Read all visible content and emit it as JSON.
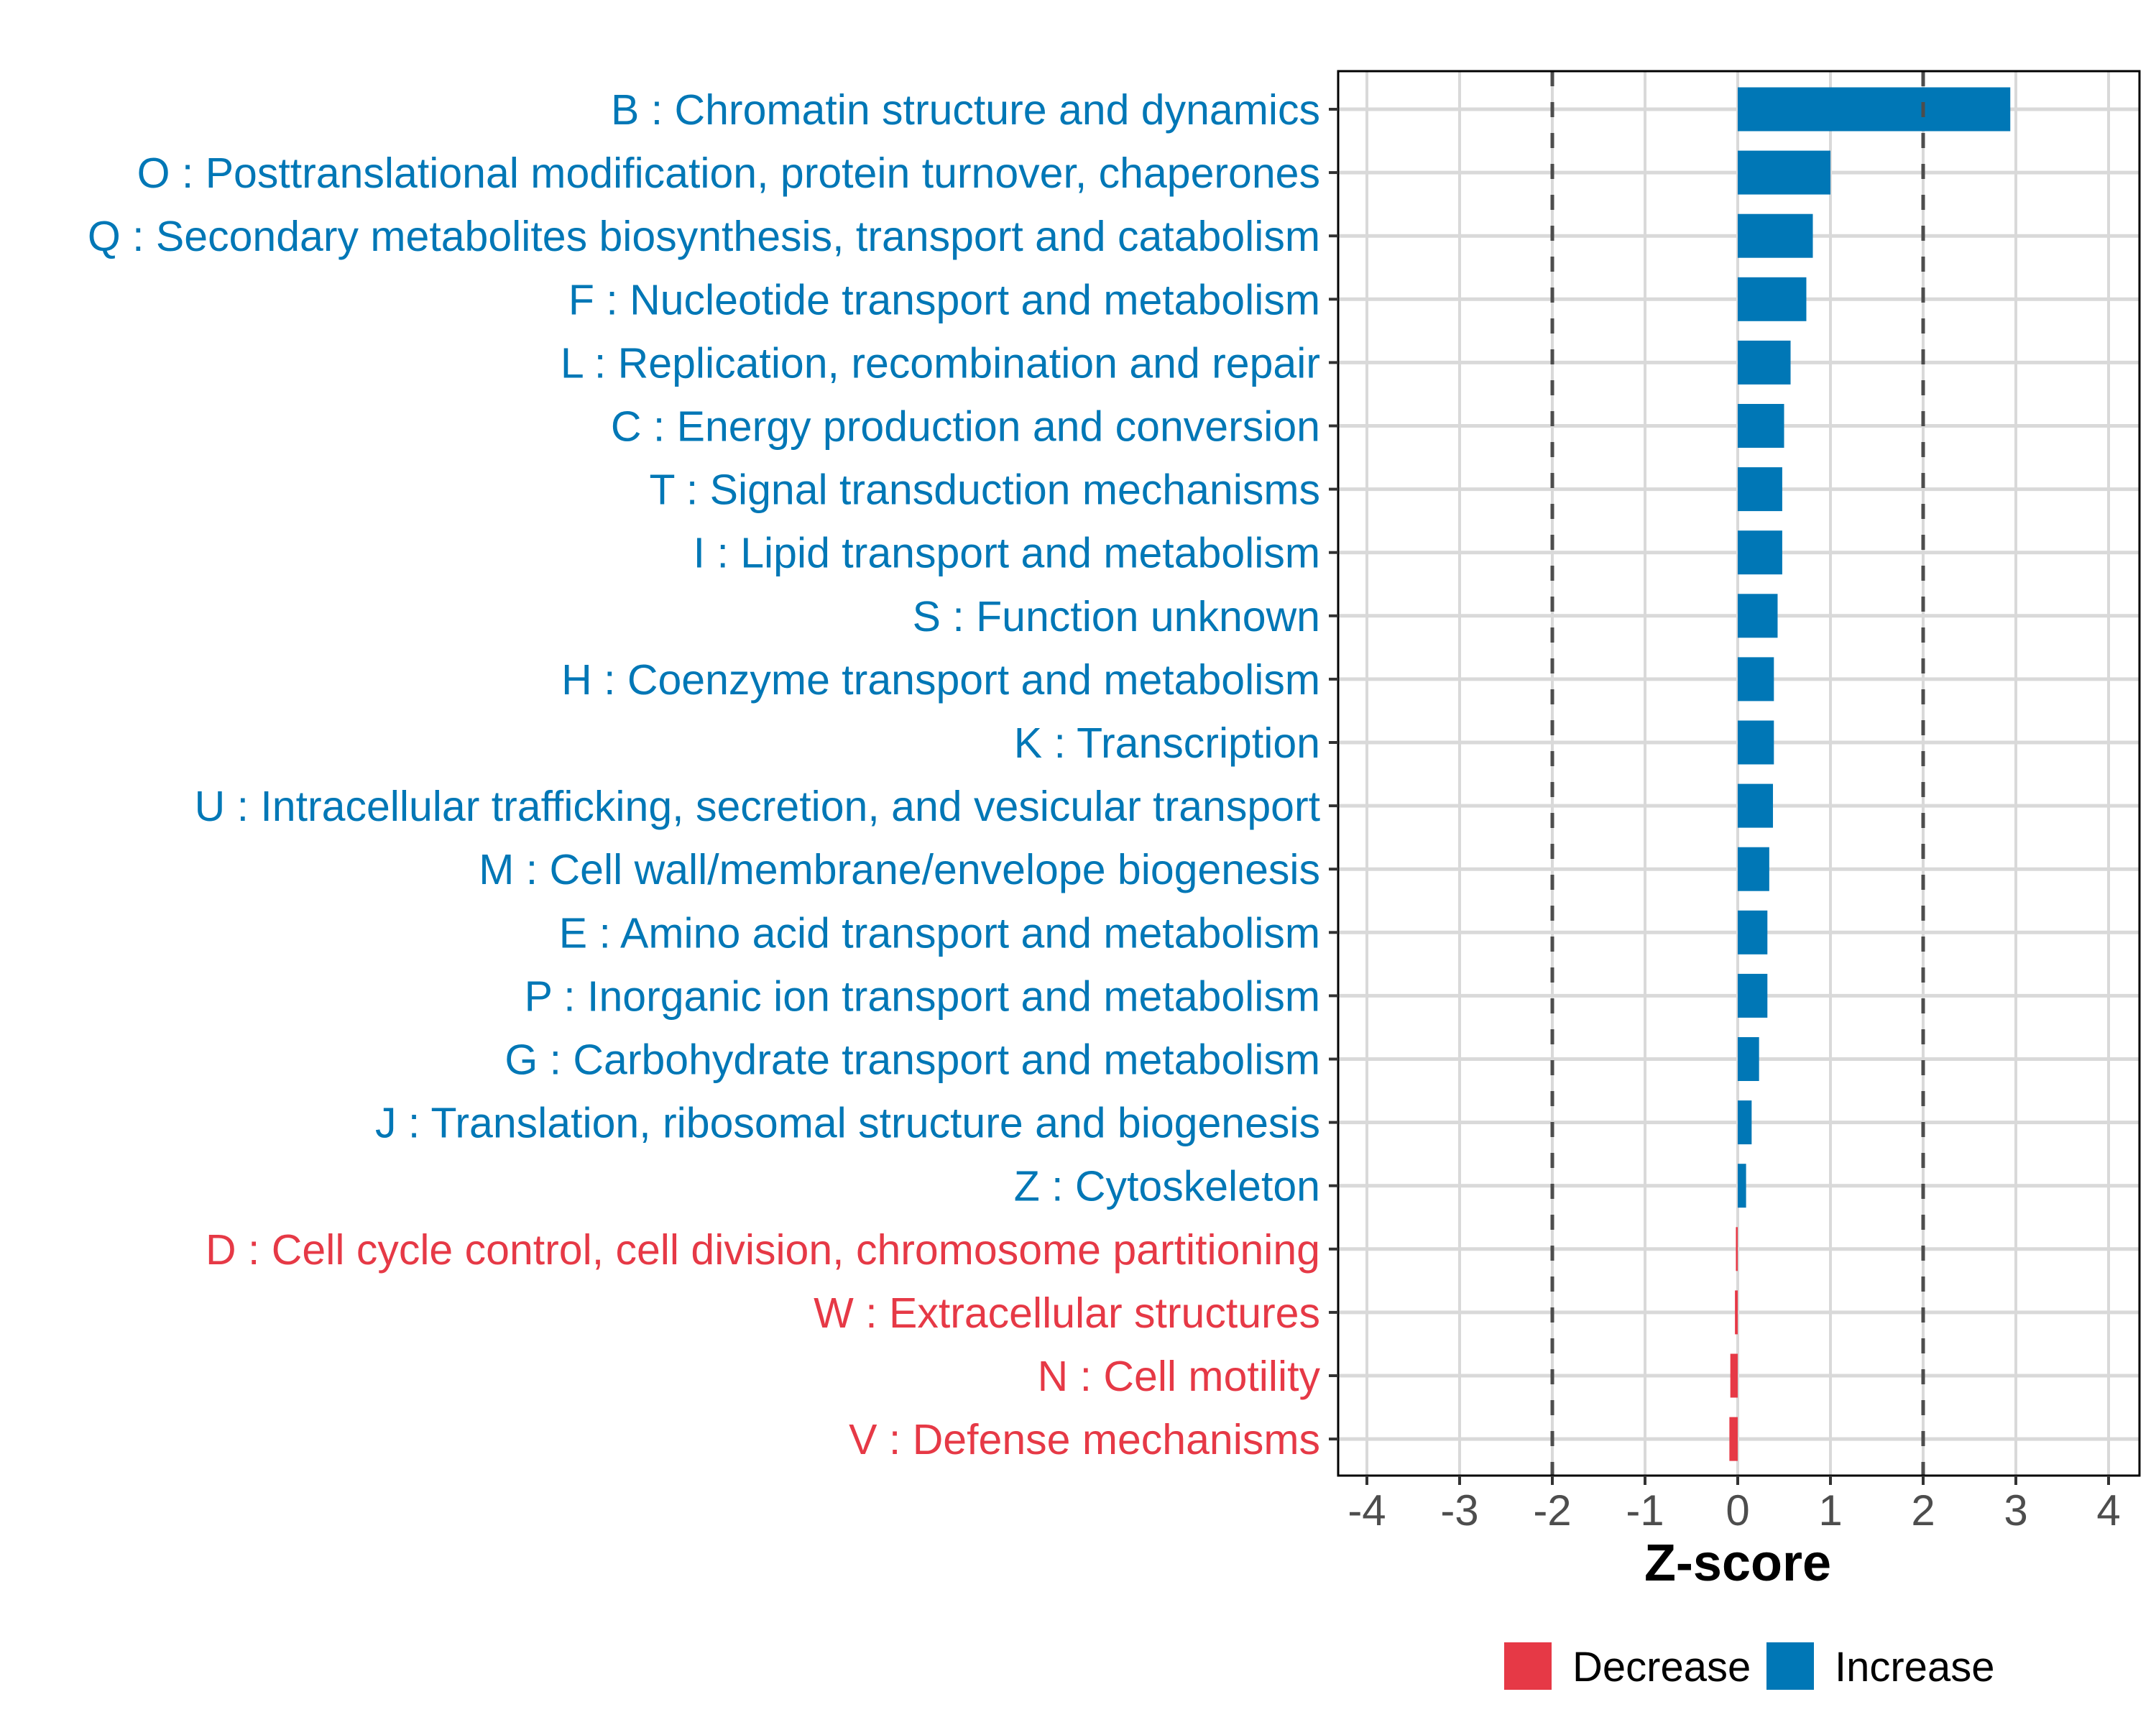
{
  "chart_data": {
    "type": "bar",
    "orientation": "horizontal",
    "title": "",
    "xlabel": "Z-score",
    "ylabel": "",
    "xlim": [
      -4.3,
      4.3
    ],
    "x_ticks": [
      -4,
      -3,
      -2,
      -1,
      0,
      1,
      2,
      3,
      4
    ],
    "x_tick_labels": [
      "-4",
      "-3",
      "-2",
      "-1",
      "0",
      "1",
      "2",
      "3",
      "4"
    ],
    "reference_lines": [
      -2,
      2
    ],
    "grid": true,
    "legend_position": "bottom",
    "legend": [
      {
        "name": "Decrease",
        "color": "#E63946"
      },
      {
        "name": "Increase",
        "color": "#0077B6"
      }
    ],
    "categories": [
      "B : Chromatin structure and dynamics",
      "O : Posttranslational modification, protein turnover, chaperones",
      "Q : Secondary metabolites biosynthesis, transport and catabolism",
      "F : Nucleotide transport and metabolism",
      "L : Replication, recombination and repair",
      "C : Energy production and conversion",
      "T : Signal transduction mechanisms",
      "I : Lipid transport and metabolism",
      "S : Function unknown",
      "H : Coenzyme transport and metabolism",
      "K : Transcription",
      "U : Intracellular trafficking, secretion, and vesicular transport",
      "M : Cell wall/membrane/envelope biogenesis",
      "E : Amino acid transport and metabolism",
      "P : Inorganic ion transport and metabolism",
      "G : Carbohydrate transport and metabolism",
      "J : Translation, ribosomal structure and biogenesis",
      "Z : Cytoskeleton",
      "D : Cell cycle control, cell division, chromosome partitioning",
      "W : Extracellular structures",
      "N : Cell motility",
      "V : Defense mechanisms"
    ],
    "values": [
      2.94,
      1.0,
      0.81,
      0.74,
      0.57,
      0.5,
      0.48,
      0.48,
      0.43,
      0.39,
      0.39,
      0.38,
      0.34,
      0.32,
      0.32,
      0.23,
      0.15,
      0.09,
      -0.02,
      -0.03,
      -0.08,
      -0.09
    ],
    "groups": [
      "Increase",
      "Increase",
      "Increase",
      "Increase",
      "Increase",
      "Increase",
      "Increase",
      "Increase",
      "Increase",
      "Increase",
      "Increase",
      "Increase",
      "Increase",
      "Increase",
      "Increase",
      "Increase",
      "Increase",
      "Increase",
      "Decrease",
      "Decrease",
      "Decrease",
      "Decrease"
    ]
  }
}
